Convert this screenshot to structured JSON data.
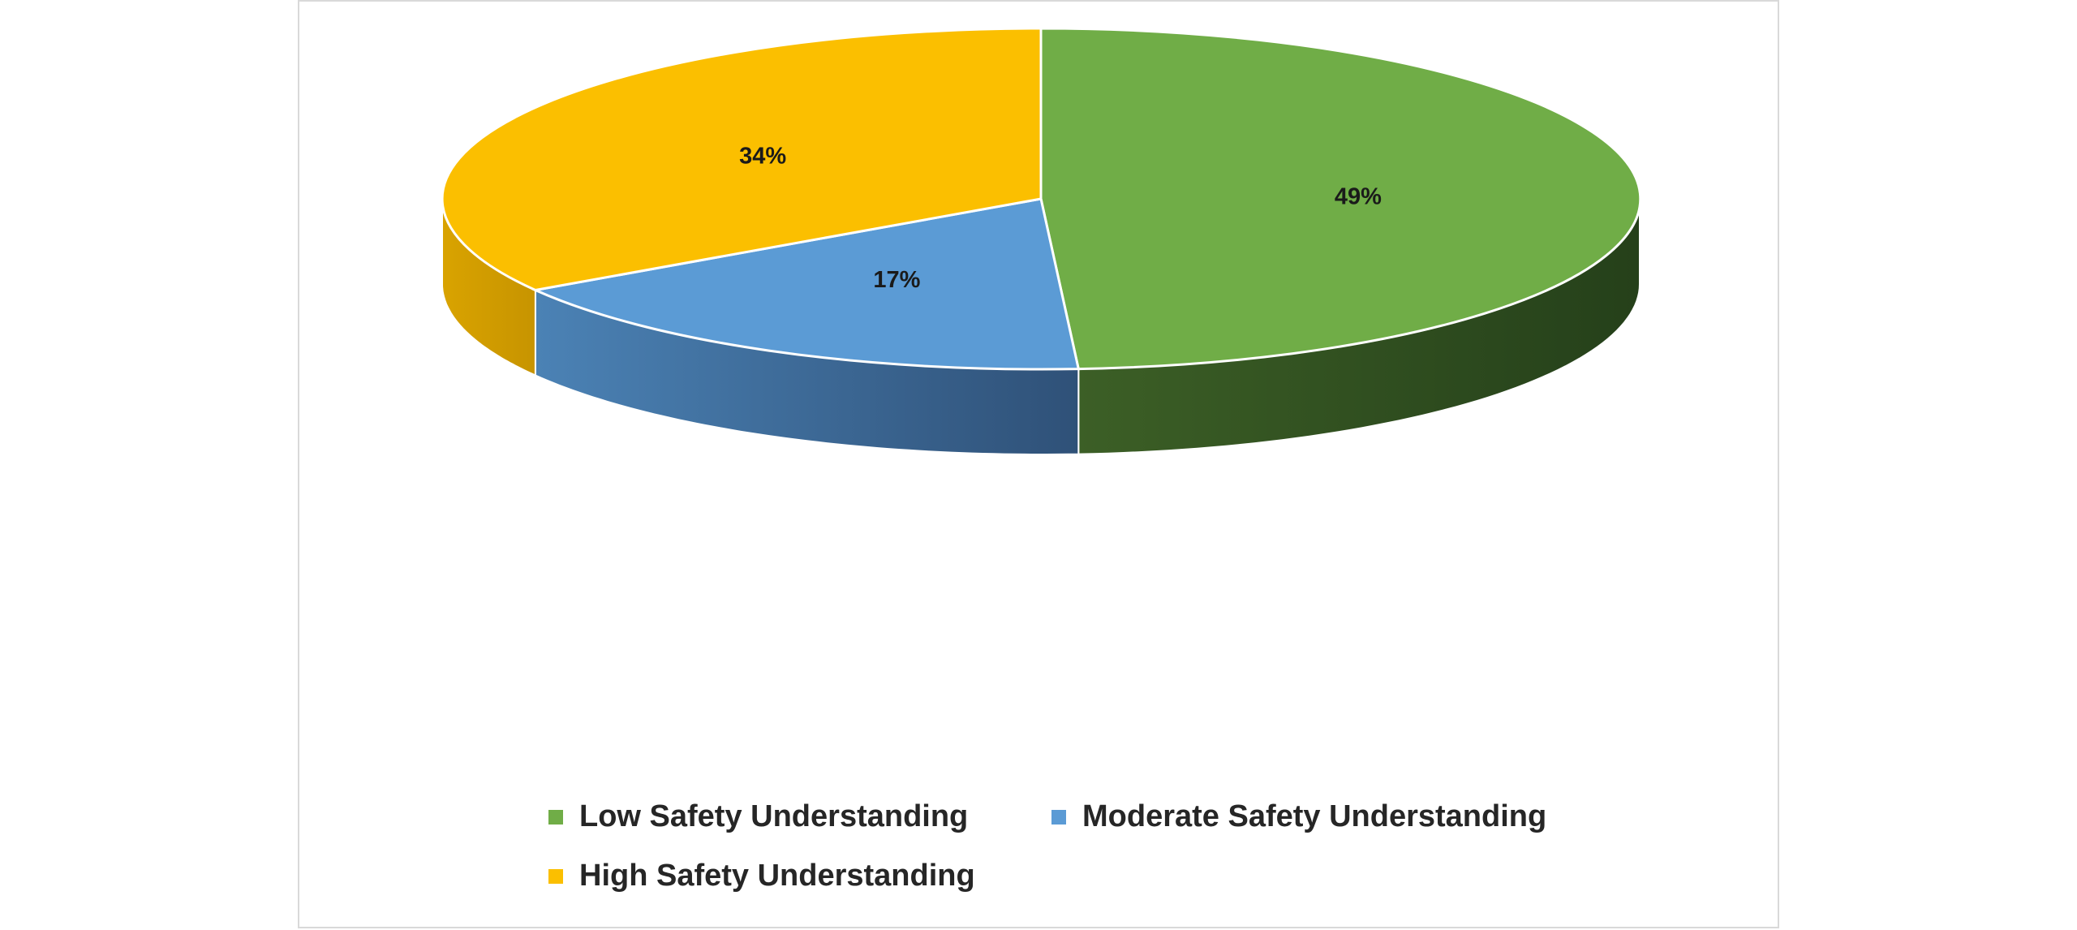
{
  "chart_data": {
    "type": "pie",
    "style": "3d",
    "categories": [
      "Low Safety Understanding",
      "Moderate Safety Understanding",
      "High Safety Understanding"
    ],
    "values": [
      49,
      17,
      34
    ],
    "unit": "%",
    "data_labels": [
      "49%",
      "17%",
      "34%"
    ],
    "colors": [
      "#70ad47",
      "#5b9bd5",
      "#fbbf00"
    ],
    "legend": "bottom",
    "title": ""
  }
}
